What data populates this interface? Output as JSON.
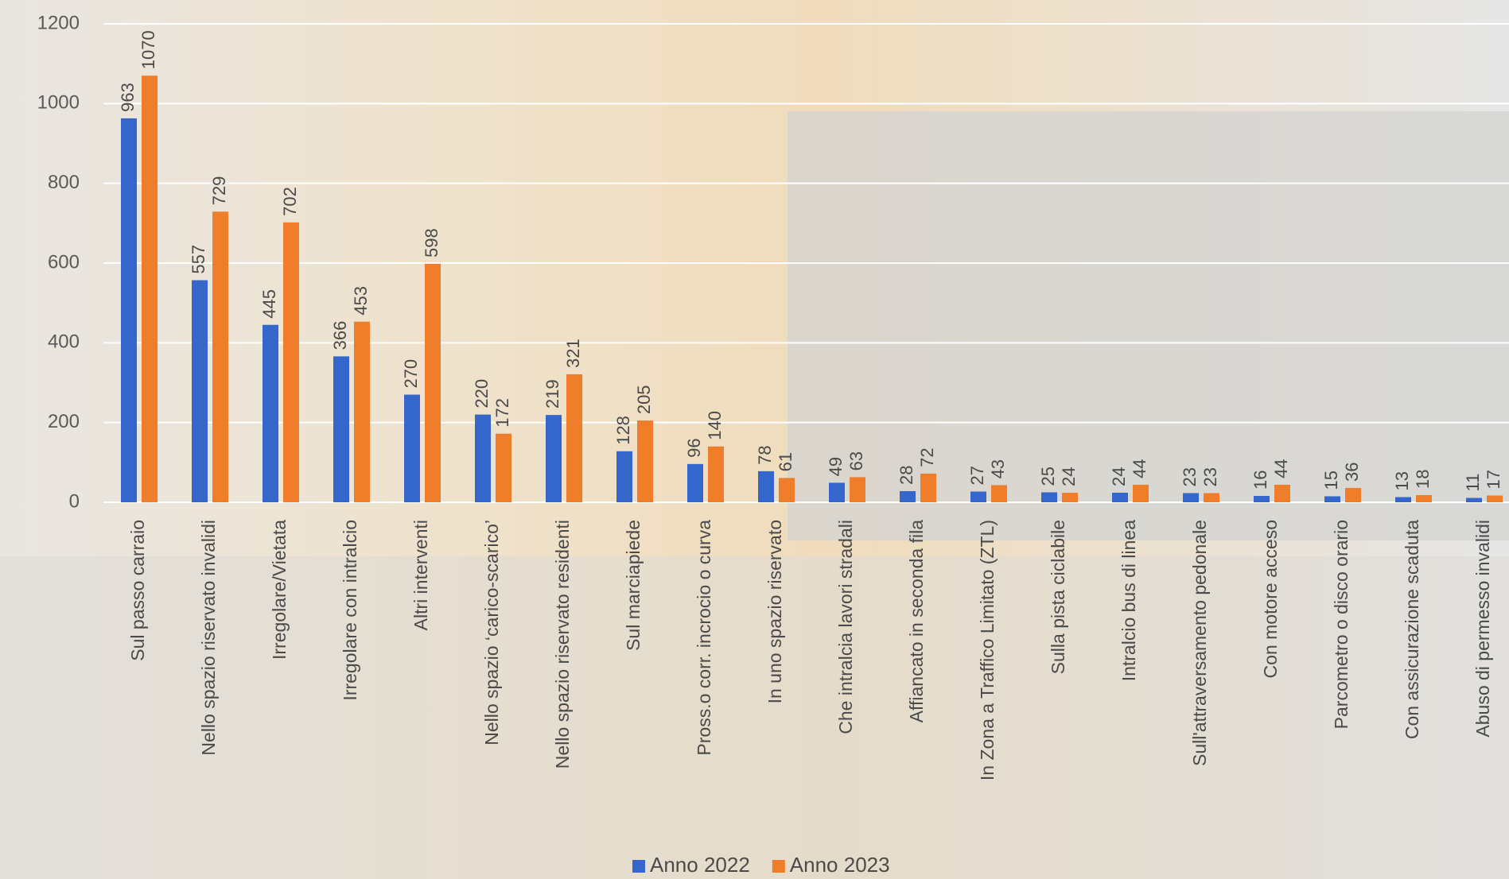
{
  "chart_data": {
    "type": "bar",
    "categories": [
      "Sul passo carraio",
      "Nello spazio riservato invalidi",
      "Irregolare/Vietata",
      "Irregolare con intralcio",
      "Altri interventi",
      "Nello spazio ‘carico-scarico’",
      "Nello spazio riservato residenti",
      "Sul marciapiede",
      "Pross.o corr. incrocio o curva",
      "In uno spazio riservato",
      "Che intralcia lavori stradali",
      "Affiancato in seconda fila",
      "In Zona a Traffico Limitato (ZTL)",
      "Sulla pista ciclabile",
      "Intralcio bus di linea",
      "Sull'attraversamento pedonale",
      "Con motore acceso",
      "Parcometro o disco orario",
      "Con assicurazione scaduta",
      "Abuso di permesso invalidi"
    ],
    "series": [
      {
        "name": "Anno 2022",
        "color": "#3566cc",
        "values": [
          963,
          557,
          445,
          366,
          270,
          220,
          219,
          128,
          96,
          78,
          49,
          28,
          27,
          25,
          24,
          23,
          16,
          15,
          13,
          11
        ]
      },
      {
        "name": "Anno 2023",
        "color": "#f07d2a",
        "values": [
          1070,
          729,
          702,
          453,
          598,
          172,
          321,
          205,
          140,
          61,
          63,
          72,
          43,
          24,
          44,
          23,
          44,
          36,
          18,
          17
        ]
      }
    ],
    "ylim": [
      0,
      1200
    ],
    "yticks": [
      0,
      200,
      400,
      600,
      800,
      1000,
      1200
    ],
    "grid": true,
    "legend": "bottom"
  }
}
